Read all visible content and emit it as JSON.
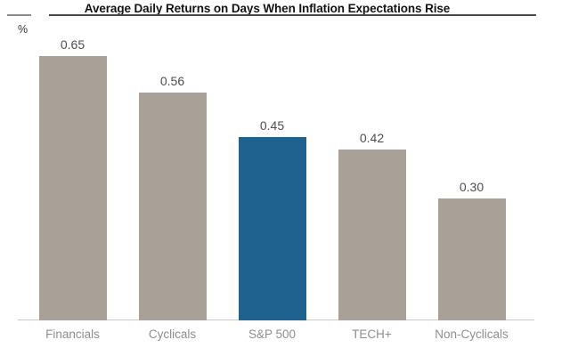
{
  "header": {
    "title": "Average Daily Returns on Days When Inflation Expectations Rise",
    "axis_unit_label": "%"
  },
  "colors": {
    "bar_default": "#a9a098",
    "bar_highlight": "#1f618f",
    "title_text": "#141414",
    "title_rule": "#4a4a4a",
    "value_label": "#4d4d4d",
    "category_label": "#8e8e8e",
    "baseline": "#c9c9c9"
  },
  "chart_data": {
    "type": "bar",
    "title": "Average Daily Returns on Days When Inflation Expectations Rise",
    "unit": "%",
    "categories": [
      "Financials",
      "Cyclicals",
      "S&P 500",
      "TECH+",
      "Non-Cyclicals"
    ],
    "values": [
      0.65,
      0.56,
      0.45,
      0.42,
      0.3
    ],
    "value_labels": [
      "0.65",
      "0.56",
      "0.45",
      "0.42",
      "0.30"
    ],
    "highlight_index": 2,
    "highlighted_category": "S&P 500",
    "xlabel": "",
    "ylabel": "%",
    "ylim": [
      0,
      0.7
    ],
    "grid": false,
    "legend": false,
    "bar_colors": [
      "#a9a098",
      "#a9a098",
      "#1f618f",
      "#a9a098",
      "#a9a098"
    ]
  }
}
